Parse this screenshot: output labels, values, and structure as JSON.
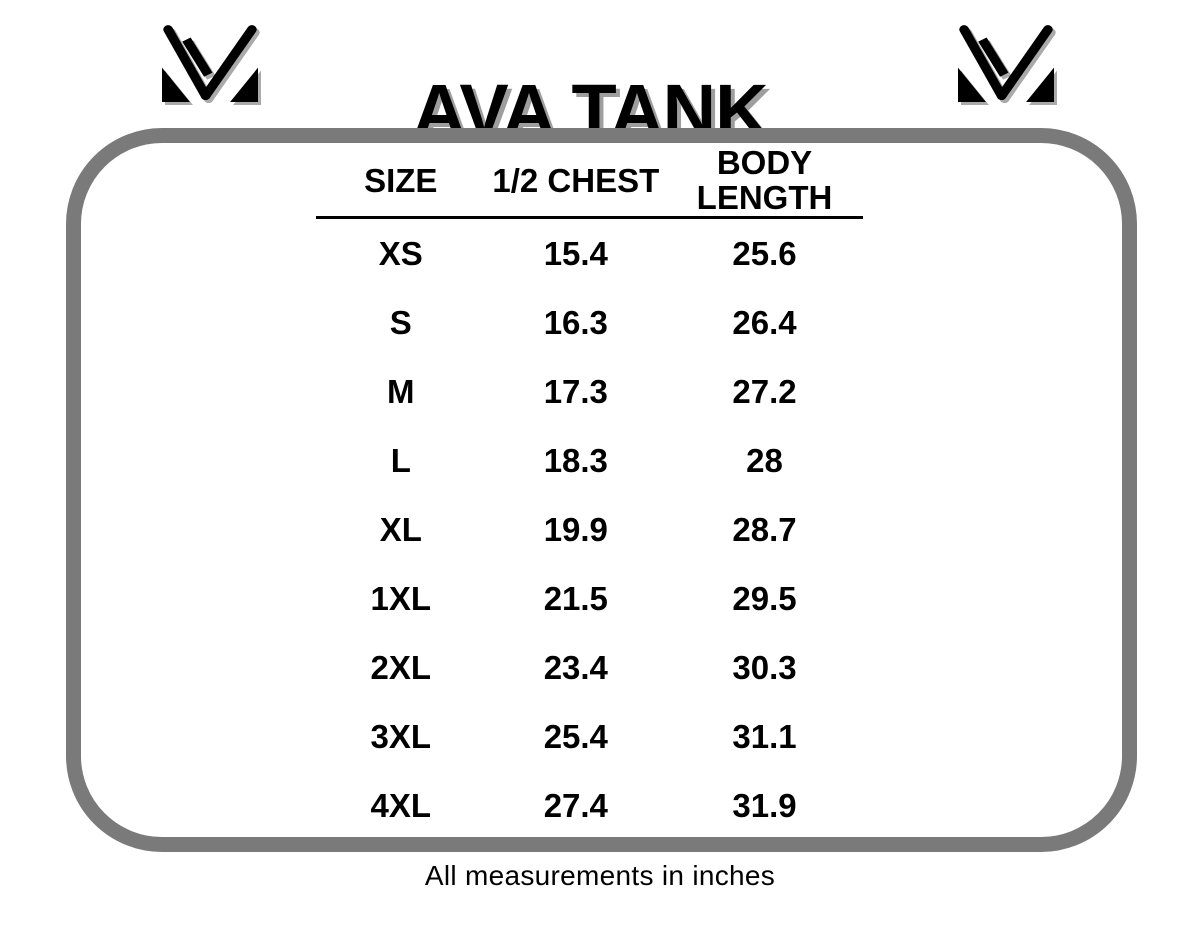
{
  "header": {
    "title": "AVA TANK"
  },
  "icons": {
    "brand_logo": "mv-monogram-logo"
  },
  "colors": {
    "background": "#ffffff",
    "text": "#000000",
    "border_gray": "#7a7a7a",
    "title_shadow": "#9e9e9e"
  },
  "chart_data": {
    "type": "table",
    "title": "AVA TANK",
    "columns": [
      "SIZE",
      "1/2 CHEST",
      "BODY LENGTH"
    ],
    "rows": [
      [
        "XS",
        "15.4",
        "25.6"
      ],
      [
        "S",
        "16.3",
        "26.4"
      ],
      [
        "M",
        "17.3",
        "27.2"
      ],
      [
        "L",
        "18.3",
        "28"
      ],
      [
        "XL",
        "19.9",
        "28.7"
      ],
      [
        "1XL",
        "21.5",
        "29.5"
      ],
      [
        "2XL",
        "23.4",
        "30.3"
      ],
      [
        "3XL",
        "25.4",
        "31.1"
      ],
      [
        "4XL",
        "27.4",
        "31.9"
      ]
    ],
    "units": "inches",
    "note": "All measurements in inches"
  }
}
